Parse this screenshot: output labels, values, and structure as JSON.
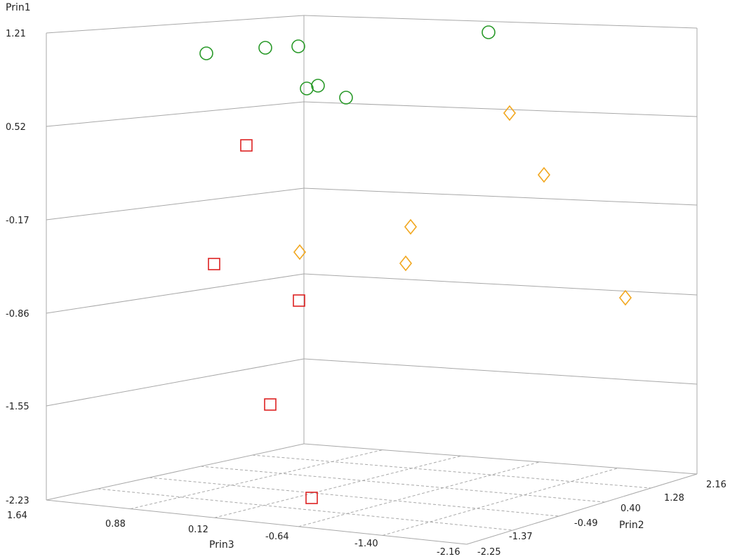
{
  "chart_data": {
    "type": "scatter",
    "title": "",
    "axes": {
      "prin1": {
        "label": "Prin1",
        "ticks": [
          "1.21",
          "0.52",
          "-0.17",
          "-0.86",
          "-1.55",
          "-2.23"
        ]
      },
      "prin3": {
        "label": "Prin3",
        "ticks": [
          "1.64",
          "0.88",
          "0.12",
          "-0.64",
          "-1.40",
          "-2.16"
        ]
      },
      "prin2": {
        "label": "Prin2",
        "ticks": [
          "-2.25",
          "-1.37",
          "-0.49",
          "0.40",
          "1.28",
          "2.16"
        ]
      }
    },
    "ylim": [
      -2.23,
      1.21
    ],
    "grid": true,
    "series": [
      {
        "marker": "circle",
        "color": "#2a9a2a",
        "points": [
          {
            "prin1": 1.06
          },
          {
            "prin1": 1.11
          },
          {
            "prin1": 1.12
          },
          {
            "prin1": 1.22
          },
          {
            "prin1": 0.81
          },
          {
            "prin1": 0.84
          },
          {
            "prin1": 0.83
          }
        ]
      },
      {
        "marker": "square",
        "color": "#dd2222",
        "points": [
          {
            "prin1": 0.38
          },
          {
            "prin1": -0.54
          },
          {
            "prin1": -0.82
          },
          {
            "prin1": -1.52
          },
          {
            "prin1": -2.21
          }
        ]
      },
      {
        "marker": "diamond",
        "color": "#f2a71e",
        "points": [
          {
            "prin1": 0.59
          },
          {
            "prin1": 0.23
          },
          {
            "prin1": -0.32
          },
          {
            "prin1": -0.2
          },
          {
            "prin1": -0.52
          },
          {
            "prin1": -0.71
          }
        ]
      }
    ]
  }
}
